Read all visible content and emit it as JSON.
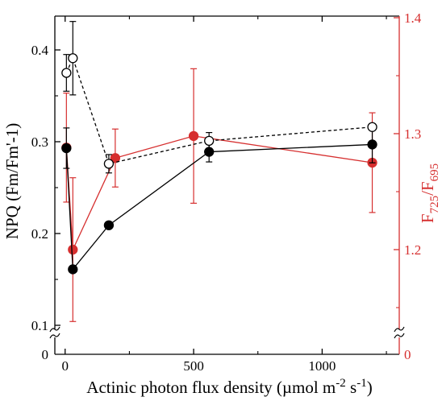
{
  "chart_data": {
    "type": "scatter",
    "xlabel_base": "Actinic photon flux density (µmol m",
    "xlabel_exp1": "-2",
    "xlabel_mid": " s",
    "xlabel_exp2": "-1",
    "xlabel_end": ")",
    "ylabel_left": "NPQ (Fm/Fm'-1)",
    "ylabel_right_base": "F",
    "ylabel_right_sub1": "725",
    "ylabel_right_slash": "/F",
    "ylabel_right_sub2": "695",
    "xlim": [
      -40,
      1300
    ],
    "ylim_left": [
      0.05,
      0.44
    ],
    "ylim_right": [
      1.08,
      1.4
    ],
    "x_ticks": [
      0,
      500,
      1000
    ],
    "x_tick_labels": [
      "0",
      "500",
      "1000"
    ],
    "y_left_ticks": [
      0.1,
      0.2,
      0.3,
      0.4
    ],
    "y_left_tick_labels": [
      "0.1",
      "0.2",
      "0.3",
      "0.4"
    ],
    "y_left_zero_label": "0",
    "y_right_ticks": [
      1.2,
      1.3,
      1.4
    ],
    "y_right_tick_labels": [
      "1.2",
      "1.3",
      "1.4"
    ],
    "y_right_zero_label": "0",
    "axis_break": true,
    "colors": {
      "axis": "#000000",
      "black_series": "#000000",
      "red_series": "#d62f2f",
      "right_axis": "#d62f2f"
    },
    "series": [
      {
        "axis": "left",
        "marker": "filled-circle",
        "line": "solid",
        "color": "#000000",
        "points": [
          {
            "x": 5,
            "y": 0.293,
            "err": 0.022
          },
          {
            "x": 30,
            "y": 0.161,
            "err": 0
          },
          {
            "x": 170,
            "y": 0.209,
            "err": 0
          },
          {
            "x": 560,
            "y": 0.289,
            "err": 0.011
          },
          {
            "x": 1195,
            "y": 0.297,
            "err": 0.02
          }
        ]
      },
      {
        "axis": "left",
        "marker": "open-circle",
        "line": "dashed",
        "color": "#000000",
        "points": [
          {
            "x": 5,
            "y": 0.375,
            "err": 0.02
          },
          {
            "x": 30,
            "y": 0.391,
            "err": 0.04
          },
          {
            "x": 170,
            "y": 0.276,
            "err": 0.01
          },
          {
            "x": 560,
            "y": 0.301,
            "err": 0.009
          },
          {
            "x": 1195,
            "y": 0.316,
            "err": 0
          }
        ]
      },
      {
        "axis": "right",
        "marker": "filled-circle",
        "line": "solid",
        "color": "#d62f2f",
        "points": [
          {
            "x": 5,
            "y": 1.288,
            "err": 0.047
          },
          {
            "x": 30,
            "y": 1.2,
            "err": 0.062
          },
          {
            "x": 195,
            "y": 1.279,
            "err": 0.025
          },
          {
            "x": 500,
            "y": 1.298,
            "err": 0.058
          },
          {
            "x": 1195,
            "y": 1.275,
            "err": 0.043
          }
        ]
      }
    ]
  }
}
